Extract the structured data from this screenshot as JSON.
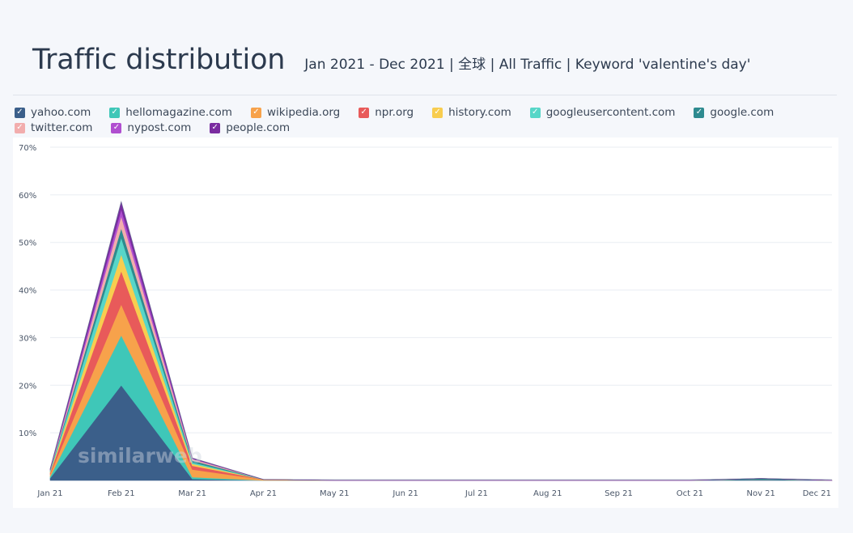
{
  "header": {
    "title": "Traffic distribution",
    "subtitle": "Jan 2021 - Dec 2021 | 全球 | All Traffic | Keyword 'valentine's day'"
  },
  "watermark": "similarweb",
  "legend": [
    {
      "name": "yahoo.com",
      "color": "#3b5f8a"
    },
    {
      "name": "hellomagazine.com",
      "color": "#3fc7b8"
    },
    {
      "name": "wikipedia.org",
      "color": "#f7a24b"
    },
    {
      "name": "npr.org",
      "color": "#e85a5a"
    },
    {
      "name": "history.com",
      "color": "#f8cd4f"
    },
    {
      "name": "googleusercontent.com",
      "color": "#57d6c8"
    },
    {
      "name": "google.com",
      "color": "#2e8a8f"
    },
    {
      "name": "twitter.com",
      "color": "#f2adad"
    },
    {
      "name": "nypost.com",
      "color": "#b04fd0"
    },
    {
      "name": "people.com",
      "color": "#7a2ca0"
    }
  ],
  "chart_data": {
    "type": "area",
    "stacked": true,
    "x": [
      "Jan 21",
      "Feb 21",
      "Mar 21",
      "Apr 21",
      "May 21",
      "Jun 21",
      "Jul 21",
      "Aug 21",
      "Sep 21",
      "Oct 21",
      "Nov 21",
      "Dec 21"
    ],
    "ylim": [
      0,
      70
    ],
    "yticks": [
      "10%",
      "20%",
      "30%",
      "40%",
      "50%",
      "60%",
      "70%"
    ],
    "grid": true,
    "series": [
      {
        "name": "yahoo.com",
        "color": "#3b5f8a",
        "values": [
          0.5,
          20,
          0.3,
          0,
          0,
          0,
          0,
          0,
          0,
          0,
          0.2,
          0
        ]
      },
      {
        "name": "hellomagazine.com",
        "color": "#3fc7b8",
        "values": [
          0.3,
          10.5,
          0.4,
          0,
          0,
          0,
          0,
          0,
          0,
          0,
          0,
          0
        ]
      },
      {
        "name": "wikipedia.org",
        "color": "#f7a24b",
        "values": [
          0.5,
          6.5,
          1.6,
          0.2,
          0,
          0,
          0,
          0,
          0,
          0,
          0,
          0
        ]
      },
      {
        "name": "npr.org",
        "color": "#e85a5a",
        "values": [
          0.3,
          7,
          0.8,
          0,
          0,
          0,
          0,
          0,
          0,
          0,
          0,
          0
        ]
      },
      {
        "name": "history.com",
        "color": "#f8cd4f",
        "values": [
          0.2,
          3.5,
          0.4,
          0,
          0,
          0,
          0,
          0,
          0,
          0,
          0,
          0
        ]
      },
      {
        "name": "googleusercontent.com",
        "color": "#57d6c8",
        "values": [
          0.2,
          3.5,
          0.3,
          0,
          0,
          0,
          0,
          0,
          0,
          0,
          0,
          0
        ]
      },
      {
        "name": "google.com",
        "color": "#2e8a8f",
        "values": [
          0.1,
          2,
          0.4,
          0,
          0,
          0,
          0,
          0,
          0,
          0,
          0.2,
          0
        ]
      },
      {
        "name": "twitter.com",
        "color": "#f2adad",
        "values": [
          0.1,
          2.5,
          0.3,
          0,
          0,
          0,
          0,
          0,
          0,
          0,
          0,
          0
        ]
      },
      {
        "name": "nypost.com",
        "color": "#b04fd0",
        "values": [
          0.1,
          1.5,
          0.1,
          0,
          0,
          0,
          0,
          0,
          0,
          0,
          0,
          0
        ]
      },
      {
        "name": "people.com",
        "color": "#7a2ca0",
        "values": [
          0.1,
          1.5,
          0.1,
          0,
          0,
          0,
          0,
          0,
          0,
          0,
          0,
          0
        ]
      }
    ]
  }
}
